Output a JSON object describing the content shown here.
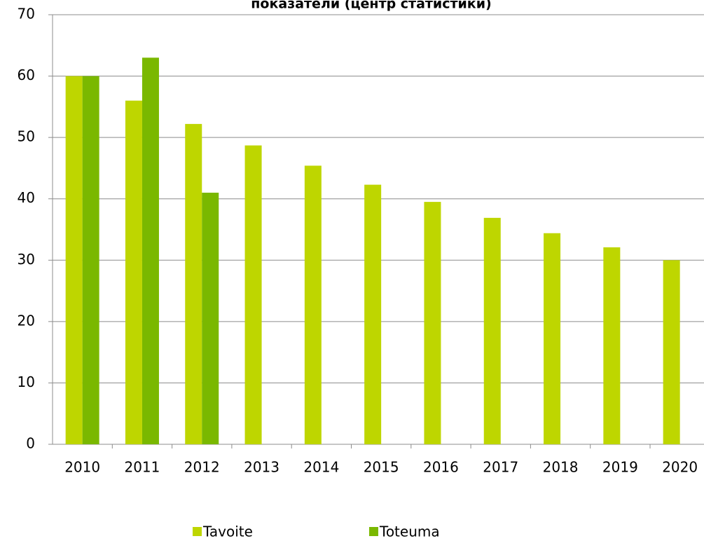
{
  "chart_data": {
    "type": "bar",
    "title": "показатели (центр статистики)",
    "categories": [
      "2010",
      "2011",
      "2012",
      "2013",
      "2014",
      "2015",
      "2016",
      "2017",
      "2018",
      "2019",
      "2020"
    ],
    "series": [
      {
        "name": "Tavoite",
        "color": "#bed600",
        "values": [
          60,
          56,
          52.2,
          48.7,
          45.4,
          42.3,
          39.5,
          36.9,
          34.4,
          32.1,
          30.0
        ]
      },
      {
        "name": "Toteuma",
        "color": "#7ab800",
        "values": [
          60,
          63,
          41,
          null,
          null,
          null,
          null,
          null,
          null,
          null,
          null
        ]
      }
    ],
    "ylim": [
      0,
      70
    ],
    "yticks": [
      0,
      10,
      20,
      30,
      40,
      50,
      60,
      70
    ],
    "grid": true,
    "legend": "bottom"
  }
}
